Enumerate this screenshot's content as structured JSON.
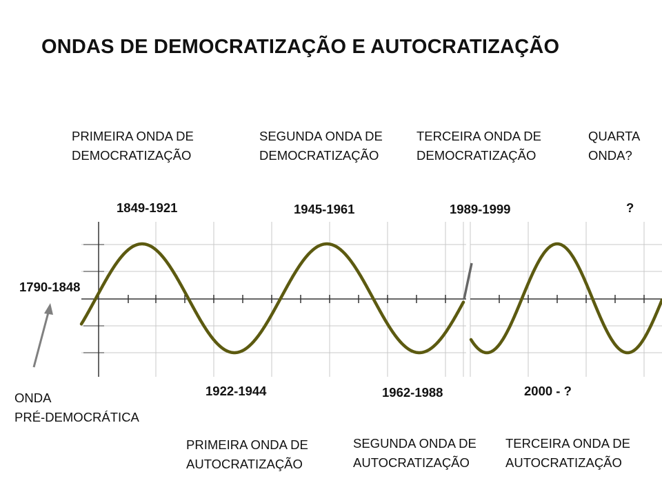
{
  "title": "ONDAS DE DEMOCRATIZAÇÃO E AUTOCRATIZAÇÃO",
  "top_labels": {
    "first_democratization": [
      "PRIMEIRA ONDA DE",
      "DEMOCRATIZAÇÃO"
    ],
    "second_democratization": [
      "SEGUNDA ONDA DE",
      "DEMOCRATIZAÇÃO"
    ],
    "third_democratization": [
      "TERCEIRA ONDA DE",
      "DEMOCRATIZAÇÃO"
    ],
    "fourth_wave": [
      "QUARTA",
      "ONDA?"
    ]
  },
  "peak_years": {
    "first": "1849-1921",
    "second": "1945-1961",
    "third": "1989-1999",
    "fourth": "?"
  },
  "origin_year": "1790-1848",
  "trough_years": {
    "first": "1922-1944",
    "second": "1962-1988",
    "third": "2000 - ?"
  },
  "pre_democratic": [
    "ONDA",
    "PRÉ-DEMOCRÁTICA"
  ],
  "bottom_labels": {
    "first_autocratization": [
      "PRIMEIRA ONDA DE",
      "AUTOCRATIZAÇÃO"
    ],
    "second_autocratization": [
      "SEGUNDA ONDA DE",
      "AUTOCRATIZAÇÃO"
    ],
    "third_autocratization": [
      "TERCEIRA ONDA DE",
      "AUTOCRATIZAÇÃO"
    ]
  },
  "colors": {
    "wave": "#5c5a10",
    "grid": "#c9c9c9",
    "axis": "#333333",
    "arrow": "#808080"
  }
}
